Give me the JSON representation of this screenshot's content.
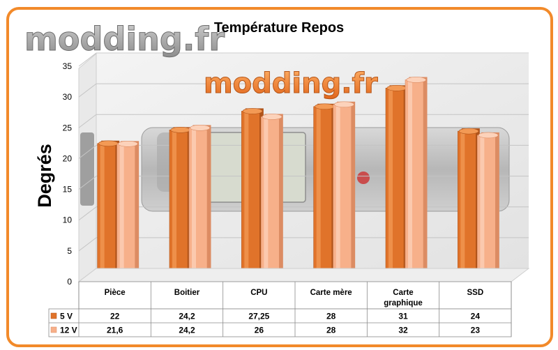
{
  "chart_data": {
    "type": "bar",
    "title": "Température Repos",
    "ylabel": "Degrés",
    "xlabel": "",
    "watermark": "modding.fr",
    "categories": [
      "Pièce",
      "Boitier",
      "CPU",
      "Carte mère",
      "Carte graphique",
      "SSD"
    ],
    "category_lines": [
      [
        "Pièce"
      ],
      [
        "Boitier"
      ],
      [
        "CPU"
      ],
      [
        "Carte mère"
      ],
      [
        "Carte",
        "graphique"
      ],
      [
        "SSD"
      ]
    ],
    "series": [
      {
        "name": "5 V",
        "values": [
          22,
          24.2,
          27.25,
          28,
          31,
          24
        ],
        "labels": [
          "22",
          "24,2",
          "27,25",
          "28",
          "31",
          "24"
        ],
        "color": "#e0732a",
        "color_light": "#f39a55",
        "color_dark": "#b0541a"
      },
      {
        "name": "12 V",
        "values": [
          21.6,
          24.2,
          26,
          28,
          32,
          23
        ],
        "labels": [
          "21,6",
          "24,2",
          "26",
          "28",
          "32",
          "23"
        ],
        "color": "#f7b08a",
        "color_light": "#fcd2ba",
        "color_dark": "#dc8c63"
      }
    ],
    "ylim": [
      0,
      35
    ],
    "yticks": [
      0,
      5,
      10,
      15,
      20,
      25,
      30,
      35
    ],
    "grid": true,
    "legend": "data-table"
  }
}
